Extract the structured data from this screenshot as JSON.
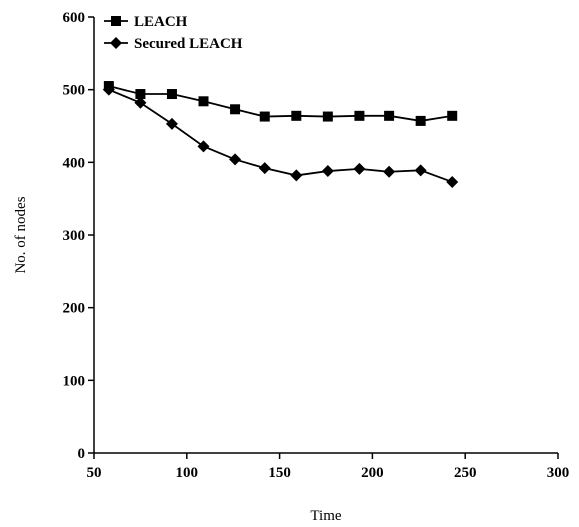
{
  "chart_data": {
    "type": "line",
    "title": "",
    "xlabel": "Time",
    "ylabel": "No. of nodes",
    "xlim": [
      50,
      300
    ],
    "ylim": [
      0,
      600
    ],
    "xticks": [
      50,
      100,
      150,
      200,
      250,
      300
    ],
    "yticks": [
      0,
      100,
      200,
      300,
      400,
      500,
      600
    ],
    "tick_labels_x": [
      "50",
      "100",
      "150",
      "200",
      "250",
      "300"
    ],
    "tick_labels_y": [
      "0",
      "100",
      "200",
      "300",
      "400",
      "500",
      "600"
    ],
    "grid": false,
    "legend_placement": "top-left",
    "series": [
      {
        "name": "LEACH",
        "marker": "square",
        "color": "#000000",
        "x": [
          58,
          75,
          92,
          109,
          126,
          142,
          159,
          176,
          193,
          209,
          226,
          243
        ],
        "y": [
          505,
          494,
          494,
          484,
          473,
          463,
          464,
          463,
          464,
          464,
          457,
          464
        ]
      },
      {
        "name": "Secured LEACH",
        "marker": "diamond",
        "color": "#000000",
        "x": [
          58,
          75,
          92,
          109,
          126,
          142,
          159,
          176,
          193,
          209,
          226,
          243
        ],
        "y": [
          500,
          482,
          453,
          422,
          404,
          392,
          382,
          388,
          391,
          387,
          389,
          373
        ]
      }
    ]
  }
}
